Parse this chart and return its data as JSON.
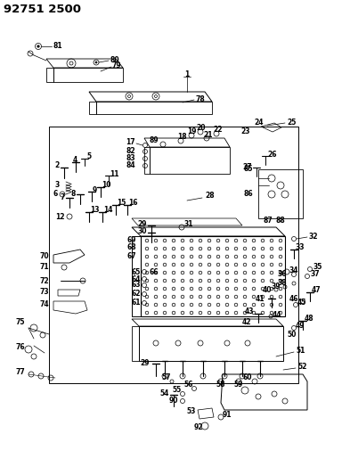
{
  "title": "92751 2500",
  "bg_color": "#ffffff",
  "line_color": "#000000",
  "fig_width": 3.84,
  "fig_height": 5.33,
  "dpi": 100,
  "title_fontsize": 9.5,
  "label_fontsize": 5.5
}
